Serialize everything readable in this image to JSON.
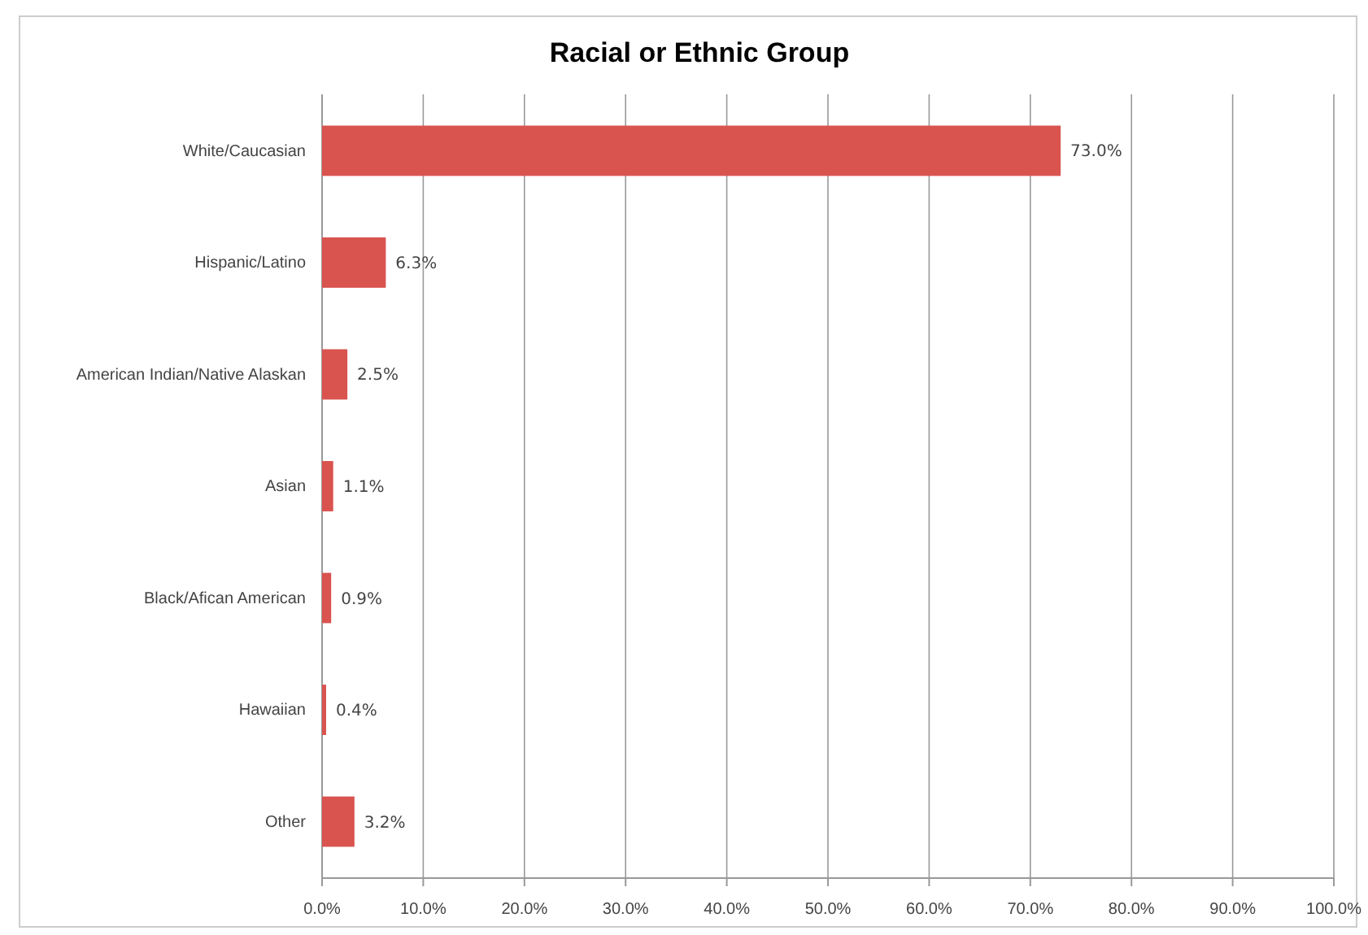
{
  "chart_data": {
    "type": "bar",
    "orientation": "horizontal",
    "title": "Racial or Ethnic Group",
    "categories": [
      "White/Caucasian",
      "Hispanic/Latino",
      "American Indian/Native Alaskan",
      "Asian",
      "Black/Afican American",
      "Hawaiian",
      "Other"
    ],
    "values": [
      73.0,
      6.3,
      2.5,
      1.1,
      0.9,
      0.4,
      3.2
    ],
    "value_labels": [
      "73.0%",
      "6.3%",
      "2.5%",
      "1.1%",
      "0.9%",
      "0.4%",
      "3.2%"
    ],
    "color": "#d9534f",
    "xlim": [
      0,
      100
    ],
    "xticks": [
      {
        "value": 0,
        "label": "0.0%"
      },
      {
        "value": 10,
        "label": "10.0%"
      },
      {
        "value": 20,
        "label": "20.0%"
      },
      {
        "value": 30,
        "label": "30.0%"
      },
      {
        "value": 40,
        "label": "40.0%"
      },
      {
        "value": 50,
        "label": "50.0%"
      },
      {
        "value": 60,
        "label": "60.0%"
      },
      {
        "value": 70,
        "label": "70.0%"
      },
      {
        "value": 80,
        "label": "80.0%"
      },
      {
        "value": 90,
        "label": "90.0%"
      },
      {
        "value": 100,
        "label": "100.0%"
      }
    ],
    "grid": "x"
  }
}
